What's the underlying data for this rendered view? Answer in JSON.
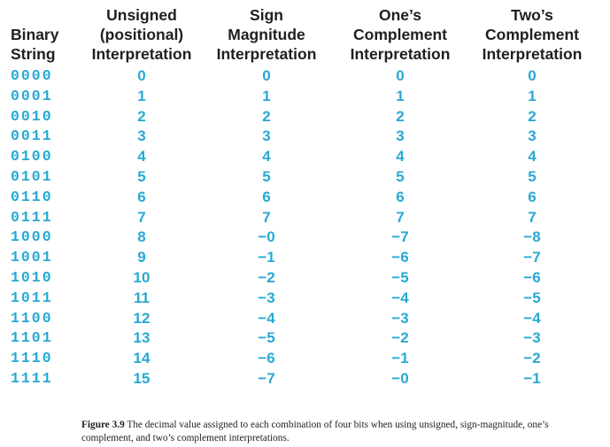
{
  "table": {
    "headers": [
      {
        "lines": [
          "Binary",
          "String"
        ]
      },
      {
        "lines": [
          "Unsigned",
          "(positional)",
          "Interpretation"
        ]
      },
      {
        "lines": [
          "Sign",
          "Magnitude",
          "Interpretation"
        ]
      },
      {
        "lines": [
          "One’s",
          "Complement",
          "Interpretation"
        ]
      },
      {
        "lines": [
          "Two’s",
          "Complement",
          "Interpretation"
        ]
      }
    ],
    "rows": [
      [
        "0000",
        "0",
        "0",
        "0",
        "0"
      ],
      [
        "0001",
        "1",
        "1",
        "1",
        "1"
      ],
      [
        "0010",
        "2",
        "2",
        "2",
        "2"
      ],
      [
        "0011",
        "3",
        "3",
        "3",
        "3"
      ],
      [
        "0100",
        "4",
        "4",
        "4",
        "4"
      ],
      [
        "0101",
        "5",
        "5",
        "5",
        "5"
      ],
      [
        "0110",
        "6",
        "6",
        "6",
        "6"
      ],
      [
        "0111",
        "7",
        "7",
        "7",
        "7"
      ],
      [
        "1000",
        "8",
        "−0",
        "−7",
        "−8"
      ],
      [
        "1001",
        "9",
        "−1",
        "−6",
        "−7"
      ],
      [
        "1010",
        "10",
        "−2",
        "−5",
        "−6"
      ],
      [
        "1011",
        "11",
        "−3",
        "−4",
        "−5"
      ],
      [
        "1100",
        "12",
        "−4",
        "−3",
        "−4"
      ],
      [
        "1101",
        "13",
        "−5",
        "−2",
        "−3"
      ],
      [
        "1110",
        "14",
        "−6",
        "−1",
        "−2"
      ],
      [
        "1111",
        "15",
        "−7",
        "−0",
        "−1"
      ]
    ]
  },
  "caption": {
    "label": "Figure 3.9",
    "text": "The decimal value assigned to each combination of four bits when using unsigned, sign-magnitude, one’s complement, and two’s complement interpretations."
  },
  "colors": {
    "value_text": "#27a9d3",
    "header_text": "#1f1f1f"
  }
}
